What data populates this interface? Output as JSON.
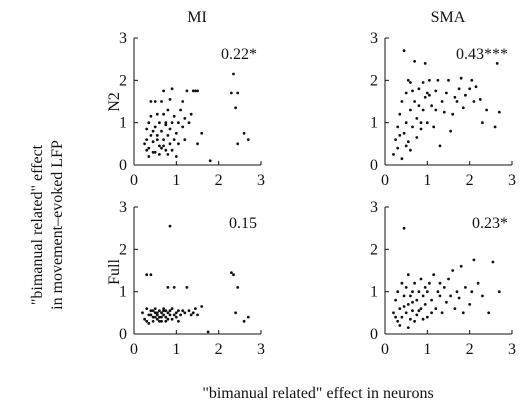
{
  "figure": {
    "ylabel_line1": "\"bimanual related\" effect",
    "ylabel_line2": "in movement–evoked LFP",
    "xlabel": "\"bimanual related\" effect in neurons",
    "columns": [
      "MI",
      "SMA"
    ],
    "rows": [
      "N2",
      "Full"
    ]
  },
  "chart_data": [
    {
      "type": "scatter",
      "panel": "MI / N2",
      "annotation": "0.22*",
      "xlim": [
        0,
        3
      ],
      "ylim": [
        0,
        3
      ],
      "xticks": [
        0,
        1,
        2,
        3
      ],
      "yticks": [
        0,
        1,
        2,
        3
      ],
      "points": [
        [
          0.25,
          0.5
        ],
        [
          0.3,
          0.6
        ],
        [
          0.3,
          0.85
        ],
        [
          0.35,
          0.4
        ],
        [
          0.35,
          1.0
        ],
        [
          0.4,
          0.7
        ],
        [
          0.4,
          1.5
        ],
        [
          0.45,
          0.55
        ],
        [
          0.45,
          0.3
        ],
        [
          0.5,
          0.9
        ],
        [
          0.5,
          1.5
        ],
        [
          0.55,
          0.6
        ],
        [
          0.55,
          0.7
        ],
        [
          0.6,
          1.0
        ],
        [
          0.6,
          0.45
        ],
        [
          0.65,
          0.8
        ],
        [
          0.65,
          1.5
        ],
        [
          0.7,
          1.2
        ],
        [
          0.7,
          0.6
        ],
        [
          0.7,
          1.75
        ],
        [
          0.75,
          0.95
        ],
        [
          0.75,
          0.35
        ],
        [
          0.8,
          1.3
        ],
        [
          0.8,
          0.7
        ],
        [
          0.85,
          0.85
        ],
        [
          0.85,
          1.55
        ],
        [
          0.9,
          1.0
        ],
        [
          0.95,
          0.6
        ],
        [
          1.0,
          0.75
        ],
        [
          1.05,
          1.0
        ],
        [
          1.05,
          0.5
        ],
        [
          1.1,
          1.3
        ],
        [
          1.15,
          0.9
        ],
        [
          1.2,
          0.6
        ],
        [
          1.25,
          1.75
        ],
        [
          1.3,
          1.0
        ],
        [
          1.35,
          1.2
        ],
        [
          1.4,
          1.75
        ],
        [
          1.45,
          1.75
        ],
        [
          1.5,
          0.5
        ],
        [
          1.5,
          1.75
        ],
        [
          1.6,
          0.75
        ],
        [
          1.8,
          0.1
        ],
        [
          2.3,
          1.7
        ],
        [
          2.35,
          2.15
        ],
        [
          2.4,
          1.35
        ],
        [
          2.45,
          1.7
        ],
        [
          2.45,
          0.5
        ],
        [
          2.6,
          0.75
        ],
        [
          2.7,
          0.6
        ],
        [
          0.9,
          1.8
        ],
        [
          0.35,
          0.2
        ],
        [
          0.5,
          0.3
        ],
        [
          0.6,
          0.25
        ],
        [
          0.7,
          0.45
        ],
        [
          0.9,
          0.35
        ],
        [
          0.95,
          1.15
        ],
        [
          1.0,
          0.2
        ],
        [
          1.15,
          1.5
        ],
        [
          0.4,
          1.15
        ],
        [
          0.3,
          0.35
        ],
        [
          0.55,
          1.2
        ],
        [
          0.75,
          1.0
        ],
        [
          0.85,
          0.5
        ],
        [
          1.2,
          1.1
        ],
        [
          0.65,
          0.4
        ],
        [
          0.45,
          0.8
        ],
        [
          0.8,
          0.25
        ]
      ]
    },
    {
      "type": "scatter",
      "panel": "SMA / N2",
      "annotation": "0.43***",
      "xlim": [
        0,
        3
      ],
      "ylim": [
        0,
        3
      ],
      "xticks": [
        0,
        1,
        2,
        3
      ],
      "yticks": [
        0,
        1,
        2,
        3
      ],
      "points": [
        [
          0.2,
          0.25
        ],
        [
          0.25,
          0.6
        ],
        [
          0.3,
          0.9
        ],
        [
          0.3,
          0.4
        ],
        [
          0.35,
          1.2
        ],
        [
          0.4,
          0.15
        ],
        [
          0.4,
          1.5
        ],
        [
          0.45,
          2.7
        ],
        [
          0.45,
          0.75
        ],
        [
          0.5,
          1.0
        ],
        [
          0.5,
          1.7
        ],
        [
          0.55,
          0.55
        ],
        [
          0.55,
          2.0
        ],
        [
          0.6,
          1.3
        ],
        [
          0.6,
          0.35
        ],
        [
          0.65,
          1.75
        ],
        [
          0.65,
          0.9
        ],
        [
          0.7,
          2.45
        ],
        [
          0.7,
          1.5
        ],
        [
          0.75,
          0.65
        ],
        [
          0.75,
          1.1
        ],
        [
          0.8,
          1.8
        ],
        [
          0.8,
          1.4
        ],
        [
          0.85,
          0.85
        ],
        [
          0.9,
          1.3
        ],
        [
          0.9,
          1.95
        ],
        [
          0.95,
          1.6
        ],
        [
          1.0,
          1.0
        ],
        [
          1.0,
          1.7
        ],
        [
          1.05,
          2.0
        ],
        [
          1.1,
          1.4
        ],
        [
          1.15,
          0.9
        ],
        [
          1.2,
          1.3
        ],
        [
          1.25,
          2.0
        ],
        [
          1.3,
          0.45
        ],
        [
          1.35,
          1.5
        ],
        [
          1.4,
          1.25
        ],
        [
          1.5,
          2.0
        ],
        [
          1.55,
          0.8
        ],
        [
          1.6,
          1.2
        ],
        [
          1.7,
          1.5
        ],
        [
          1.75,
          1.8
        ],
        [
          1.8,
          2.05
        ],
        [
          1.85,
          1.35
        ],
        [
          1.9,
          1.65
        ],
        [
          2.0,
          1.8
        ],
        [
          2.05,
          2.0
        ],
        [
          2.1,
          1.5
        ],
        [
          2.15,
          1.85
        ],
        [
          2.25,
          1.55
        ],
        [
          2.3,
          1.0
        ],
        [
          2.4,
          1.3
        ],
        [
          2.6,
          0.9
        ],
        [
          2.65,
          2.4
        ],
        [
          2.7,
          1.25
        ],
        [
          0.5,
          0.45
        ],
        [
          0.6,
          1.95
        ],
        [
          0.85,
          1.0
        ],
        [
          1.05,
          1.65
        ],
        [
          1.45,
          1.7
        ],
        [
          1.65,
          1.6
        ],
        [
          0.35,
          0.7
        ],
        [
          0.95,
          2.4
        ],
        [
          1.2,
          1.75
        ]
      ]
    },
    {
      "type": "scatter",
      "panel": "MI / Full",
      "annotation": "0.15",
      "xlim": [
        0,
        3
      ],
      "ylim": [
        0,
        3
      ],
      "xticks": [
        0,
        1,
        2,
        3
      ],
      "yticks": [
        0,
        1,
        2,
        3
      ],
      "points": [
        [
          0.2,
          0.5
        ],
        [
          0.25,
          0.35
        ],
        [
          0.3,
          0.6
        ],
        [
          0.3,
          1.4
        ],
        [
          0.35,
          0.45
        ],
        [
          0.4,
          0.55
        ],
        [
          0.4,
          1.4
        ],
        [
          0.45,
          0.3
        ],
        [
          0.45,
          0.4
        ],
        [
          0.5,
          0.5
        ],
        [
          0.5,
          0.6
        ],
        [
          0.55,
          0.45
        ],
        [
          0.55,
          0.35
        ],
        [
          0.6,
          0.55
        ],
        [
          0.6,
          0.4
        ],
        [
          0.65,
          0.5
        ],
        [
          0.65,
          0.3
        ],
        [
          0.7,
          0.45
        ],
        [
          0.7,
          0.6
        ],
        [
          0.75,
          0.4
        ],
        [
          0.75,
          0.55
        ],
        [
          0.8,
          0.5
        ],
        [
          0.8,
          1.1
        ],
        [
          0.85,
          0.45
        ],
        [
          0.85,
          2.55
        ],
        [
          0.9,
          0.6
        ],
        [
          0.9,
          0.35
        ],
        [
          0.95,
          1.1
        ],
        [
          1.0,
          0.5
        ],
        [
          1.0,
          0.4
        ],
        [
          1.05,
          0.55
        ],
        [
          1.1,
          0.45
        ],
        [
          1.2,
          0.5
        ],
        [
          1.25,
          1.1
        ],
        [
          1.3,
          0.55
        ],
        [
          1.35,
          0.45
        ],
        [
          1.4,
          0.5
        ],
        [
          1.45,
          0.6
        ],
        [
          1.5,
          0.45
        ],
        [
          1.6,
          0.65
        ],
        [
          1.75,
          0.05
        ],
        [
          2.3,
          1.45
        ],
        [
          2.35,
          1.4
        ],
        [
          2.4,
          0.5
        ],
        [
          2.45,
          1.1
        ],
        [
          2.6,
          0.3
        ],
        [
          2.7,
          0.4
        ],
        [
          0.35,
          0.25
        ],
        [
          0.45,
          0.55
        ],
        [
          0.55,
          0.5
        ],
        [
          0.65,
          0.4
        ],
        [
          0.75,
          0.3
        ],
        [
          0.95,
          0.45
        ],
        [
          1.15,
          0.55
        ],
        [
          0.4,
          0.45
        ],
        [
          0.5,
          0.4
        ],
        [
          0.6,
          0.3
        ],
        [
          0.7,
          0.55
        ],
        [
          0.85,
          0.55
        ],
        [
          1.05,
          0.3
        ],
        [
          0.3,
          0.3
        ],
        [
          0.8,
          0.35
        ]
      ]
    },
    {
      "type": "scatter",
      "panel": "SMA / Full",
      "annotation": "0.23*",
      "xlim": [
        0,
        3
      ],
      "ylim": [
        0,
        3
      ],
      "xticks": [
        0,
        1,
        2,
        3
      ],
      "yticks": [
        0,
        1,
        2,
        3
      ],
      "points": [
        [
          0.2,
          0.5
        ],
        [
          0.25,
          0.8
        ],
        [
          0.3,
          0.3
        ],
        [
          0.3,
          1.0
        ],
        [
          0.35,
          0.6
        ],
        [
          0.4,
          1.2
        ],
        [
          0.4,
          0.4
        ],
        [
          0.45,
          2.5
        ],
        [
          0.45,
          0.9
        ],
        [
          0.5,
          0.5
        ],
        [
          0.5,
          1.1
        ],
        [
          0.55,
          0.7
        ],
        [
          0.55,
          1.4
        ],
        [
          0.6,
          0.35
        ],
        [
          0.6,
          0.9
        ],
        [
          0.65,
          1.0
        ],
        [
          0.65,
          0.55
        ],
        [
          0.7,
          1.2
        ],
        [
          0.75,
          0.8
        ],
        [
          0.75,
          0.45
        ],
        [
          0.8,
          1.0
        ],
        [
          0.85,
          0.6
        ],
        [
          0.85,
          1.3
        ],
        [
          0.9,
          0.9
        ],
        [
          0.95,
          0.7
        ],
        [
          1.0,
          1.0
        ],
        [
          1.0,
          0.4
        ],
        [
          1.05,
          1.2
        ],
        [
          1.1,
          0.8
        ],
        [
          1.15,
          1.4
        ],
        [
          1.2,
          0.6
        ],
        [
          1.25,
          1.0
        ],
        [
          1.3,
          0.9
        ],
        [
          1.35,
          0.5
        ],
        [
          1.4,
          1.1
        ],
        [
          1.45,
          0.75
        ],
        [
          1.5,
          1.3
        ],
        [
          1.55,
          0.9
        ],
        [
          1.6,
          1.5
        ],
        [
          1.65,
          0.6
        ],
        [
          1.7,
          1.0
        ],
        [
          1.75,
          0.85
        ],
        [
          1.8,
          1.6
        ],
        [
          1.85,
          0.5
        ],
        [
          1.9,
          1.1
        ],
        [
          2.0,
          0.7
        ],
        [
          2.05,
          1.0
        ],
        [
          2.1,
          1.75
        ],
        [
          2.2,
          1.2
        ],
        [
          2.3,
          0.9
        ],
        [
          2.45,
          0.5
        ],
        [
          2.55,
          1.7
        ],
        [
          2.7,
          1.0
        ],
        [
          0.35,
          0.2
        ],
        [
          0.55,
          0.15
        ],
        [
          0.7,
          0.3
        ],
        [
          0.9,
          0.35
        ],
        [
          1.1,
          0.5
        ],
        [
          0.45,
          0.65
        ],
        [
          0.65,
          0.75
        ],
        [
          0.95,
          1.1
        ],
        [
          1.3,
          1.2
        ],
        [
          0.25,
          0.4
        ],
        [
          0.8,
          0.55
        ]
      ]
    }
  ]
}
